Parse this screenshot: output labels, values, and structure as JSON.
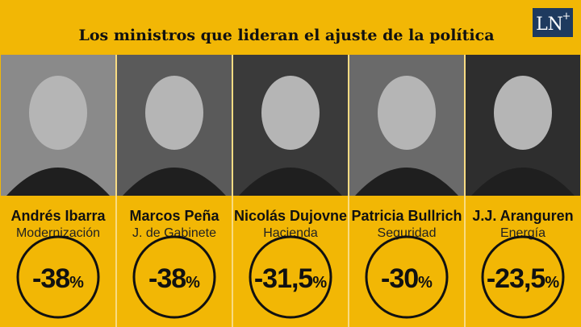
{
  "header": {
    "title": "Los ministros que lideran el ajuste de la política",
    "logo": {
      "main": "LN",
      "sup": "+"
    }
  },
  "people": [
    {
      "name": "Andrés Ibarra",
      "role": "Modernización",
      "value": "-38",
      "unit": "%"
    },
    {
      "name": "Marcos Peña",
      "role": "J. de Gabinete",
      "value": "-38",
      "unit": "%"
    },
    {
      "name": "Nicolás Dujovne",
      "role": "Hacienda",
      "value": "-31,5",
      "unit": "%"
    },
    {
      "name": "Patricia Bullrich",
      "role": "Seguridad",
      "value": "-30",
      "unit": "%"
    },
    {
      "name": "J.J. Aranguren",
      "role": "Energía",
      "value": "-23,5",
      "unit": "%"
    }
  ]
}
